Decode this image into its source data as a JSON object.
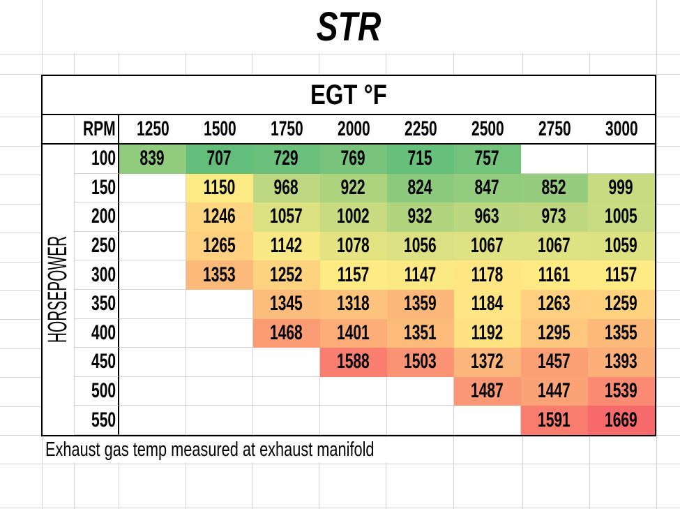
{
  "sheet": {
    "title": "STR",
    "footnote": "Exhaust gas temp measured at exhaust manifold"
  },
  "chart_data": {
    "type": "heatmap",
    "title": "EGT °F",
    "x_header_label": "RPM",
    "ylabel": "HORSEPOWER",
    "columns": [
      "1250",
      "1500",
      "1750",
      "2000",
      "2250",
      "2500",
      "2750",
      "3000"
    ],
    "rows": [
      "100",
      "150",
      "200",
      "250",
      "300",
      "350",
      "400",
      "450",
      "500",
      "550"
    ],
    "values": [
      [
        839,
        707,
        729,
        769,
        715,
        757,
        null,
        null
      ],
      [
        null,
        1150,
        968,
        922,
        824,
        847,
        852,
        999
      ],
      [
        null,
        1246,
        1057,
        1002,
        932,
        963,
        973,
        1005
      ],
      [
        null,
        1265,
        1142,
        1078,
        1056,
        1067,
        1067,
        1059
      ],
      [
        null,
        1353,
        1252,
        1157,
        1147,
        1178,
        1161,
        1157
      ],
      [
        null,
        null,
        1345,
        1318,
        1359,
        1184,
        1263,
        1259
      ],
      [
        null,
        null,
        1468,
        1401,
        1351,
        1192,
        1295,
        1355
      ],
      [
        null,
        null,
        null,
        1588,
        1503,
        1372,
        1457,
        1393
      ],
      [
        null,
        null,
        null,
        null,
        null,
        1487,
        1447,
        1539
      ],
      [
        null,
        null,
        null,
        null,
        null,
        null,
        1591,
        1669
      ]
    ],
    "color_scale": {
      "min": 707,
      "mid": 1159,
      "max": 1669,
      "min_color": "#63BE7B",
      "mid_color": "#FFEB84",
      "max_color": "#F8696B"
    },
    "legend_position": "none",
    "grid": true
  },
  "colors": {
    "gridline": "#d2d2d2",
    "table_border": "#000000",
    "background": "#ffffff",
    "text": "#000000"
  }
}
